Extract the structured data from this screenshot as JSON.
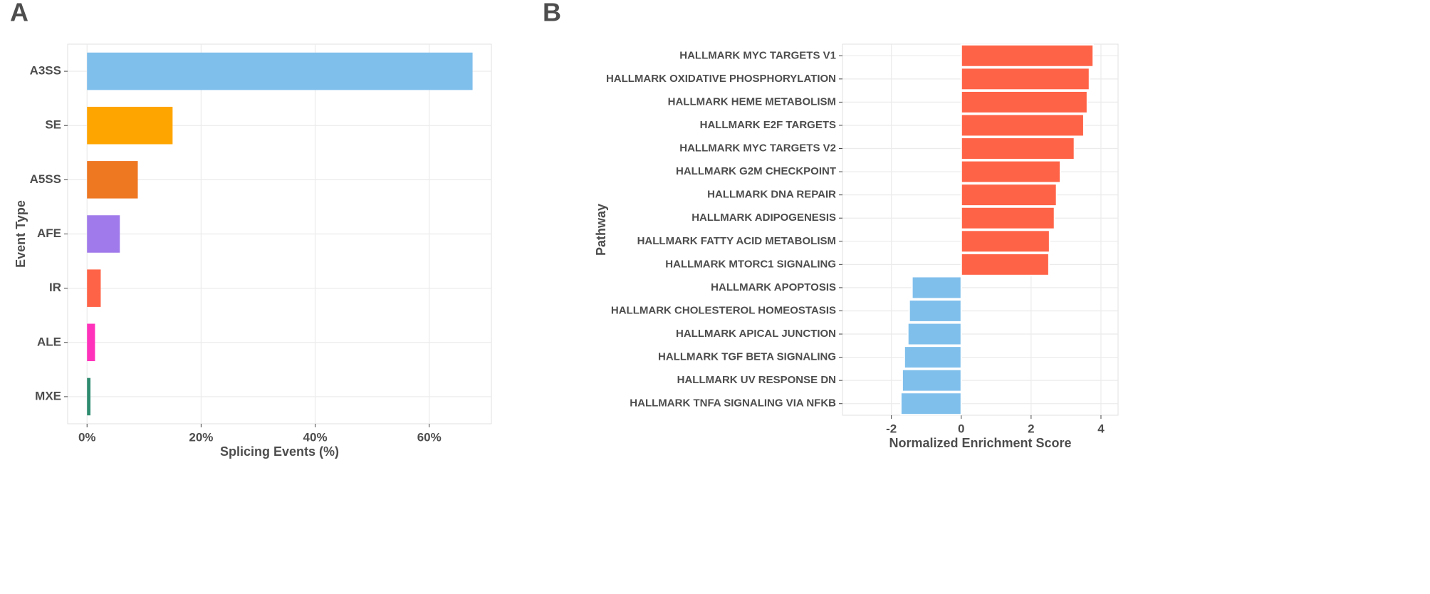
{
  "chart_data": [
    {
      "type": "bar",
      "orientation": "horizontal",
      "panel": "A",
      "x_label": "Splicing Events (%)",
      "y_label": "Event Type",
      "categories": [
        "A3SS",
        "SE",
        "A5SS",
        "AFE",
        "IR",
        "ALE",
        "MXE"
      ],
      "values": [
        67.6,
        15.0,
        8.9,
        5.75,
        2.4,
        1.4,
        0.6
      ],
      "colors": [
        "#7fbfec",
        "#ffa500",
        "#ee7722",
        "#a07aea",
        "#ff6347",
        "#ff33bb",
        "#2e8b6f"
      ],
      "xlim": [
        -3.4,
        70.9
      ],
      "xticks": [
        {
          "value": 0,
          "label": "0%"
        },
        {
          "value": 20,
          "label": "20%"
        },
        {
          "value": 40,
          "label": "40%"
        },
        {
          "value": 60,
          "label": "60%"
        }
      ],
      "grid": true
    },
    {
      "type": "bar",
      "orientation": "horizontal",
      "panel": "B",
      "x_label": "Normalized Enrichment Score",
      "y_label": "Pathway",
      "categories": [
        "HALLMARK MYC TARGETS V1",
        "HALLMARK OXIDATIVE PHOSPHORYLATION",
        "HALLMARK HEME METABOLISM",
        "HALLMARK E2F TARGETS",
        "HALLMARK MYC TARGETS V2",
        "HALLMARK G2M CHECKPOINT",
        "HALLMARK DNA REPAIR",
        "HALLMARK ADIPOGENESIS",
        "HALLMARK FATTY ACID METABOLISM",
        "HALLMARK MTORC1 SIGNALING",
        "HALLMARK APOPTOSIS",
        "HALLMARK CHOLESTEROL HOMEOSTASIS",
        "HALLMARK APICAL JUNCTION",
        "HALLMARK TGF BETA SIGNALING",
        "HALLMARK UV RESPONSE DN",
        "HALLMARK TNFA SIGNALING VIA NFKB"
      ],
      "values": [
        3.78,
        3.67,
        3.61,
        3.51,
        3.24,
        2.84,
        2.73,
        2.67,
        2.53,
        2.51,
        -1.41,
        -1.49,
        -1.53,
        -1.63,
        -1.69,
        -1.73
      ],
      "positive_color": "#ff6347",
      "negative_color": "#7fbfec",
      "xlim": [
        -3.4,
        4.49
      ],
      "xticks": [
        -2,
        0,
        2,
        4
      ],
      "grid": true
    }
  ]
}
